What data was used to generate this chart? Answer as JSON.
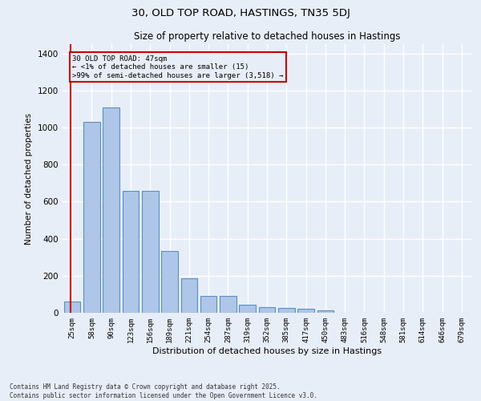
{
  "title1": "30, OLD TOP ROAD, HASTINGS, TN35 5DJ",
  "title2": "Size of property relative to detached houses in Hastings",
  "xlabel": "Distribution of detached houses by size in Hastings",
  "ylabel": "Number of detached properties",
  "categories": [
    "25sqm",
    "58sqm",
    "90sqm",
    "123sqm",
    "156sqm",
    "189sqm",
    "221sqm",
    "254sqm",
    "287sqm",
    "319sqm",
    "352sqm",
    "385sqm",
    "417sqm",
    "450sqm",
    "483sqm",
    "516sqm",
    "548sqm",
    "581sqm",
    "614sqm",
    "646sqm",
    "679sqm"
  ],
  "values": [
    62,
    1030,
    1110,
    660,
    660,
    335,
    187,
    90,
    90,
    45,
    30,
    25,
    20,
    15,
    0,
    0,
    0,
    0,
    0,
    0,
    0
  ],
  "bar_color": "#aec6e8",
  "bar_edge_color": "#5a8fc0",
  "annotation_line_color": "#cc0000",
  "annotation_text_line1": "30 OLD TOP ROAD: 47sqm",
  "annotation_text_line2": "← <1% of detached houses are smaller (15)",
  "annotation_text_line3": ">99% of semi-detached houses are larger (3,518) →",
  "annotation_box_color": "#cc0000",
  "background_color": "#e8eef8",
  "grid_color": "#ffffff",
  "ylim": [
    0,
    1450
  ],
  "yticks": [
    0,
    200,
    400,
    600,
    800,
    1000,
    1200,
    1400
  ],
  "footer1": "Contains HM Land Registry data © Crown copyright and database right 2025.",
  "footer2": "Contains public sector information licensed under the Open Government Licence v3.0."
}
